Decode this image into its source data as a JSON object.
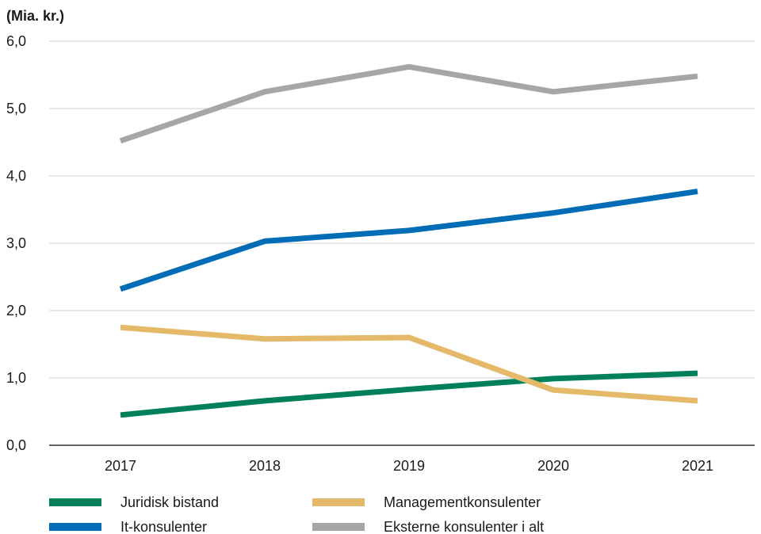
{
  "chart_data": {
    "type": "line",
    "unit_label": "(Mia. kr.)",
    "title": "",
    "xlabel": "",
    "ylabel": "",
    "categories": [
      "2017",
      "2018",
      "2019",
      "2020",
      "2021"
    ],
    "y_ticks": [
      "0,0",
      "1,0",
      "2,0",
      "3,0",
      "4,0",
      "5,0",
      "6,0"
    ],
    "ylim": [
      0,
      6
    ],
    "grid": true,
    "legend_position": "bottom",
    "series": [
      {
        "name": "Juridisk bistand",
        "color": "#00805a",
        "values": [
          0.45,
          0.66,
          0.83,
          0.99,
          1.07
        ]
      },
      {
        "name": "It-konsulenter",
        "color": "#006db6",
        "values": [
          2.32,
          3.03,
          3.19,
          3.45,
          3.77
        ]
      },
      {
        "name": "Managementkonsulenter",
        "color": "#e4b96a",
        "values": [
          1.75,
          1.58,
          1.6,
          0.82,
          0.66
        ]
      },
      {
        "name": "Eksterne konsulenter i alt",
        "color": "#a6a6a6",
        "values": [
          4.52,
          5.25,
          5.62,
          5.25,
          5.48
        ]
      }
    ]
  }
}
